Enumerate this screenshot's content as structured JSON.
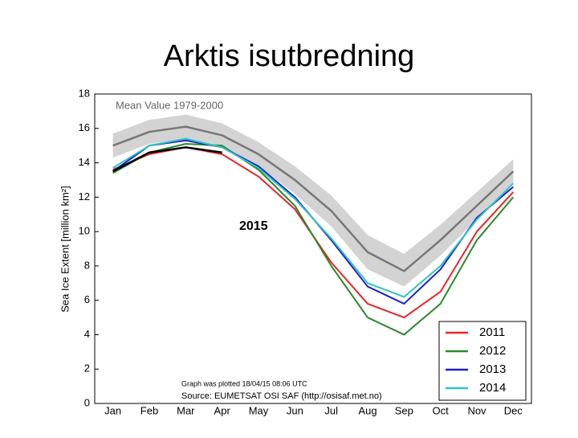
{
  "slide_title": "Arktis isutbredning",
  "chart_data": {
    "type": "line",
    "ylabel": "Sea Ice Extent [million km²]",
    "categories": [
      "Jan",
      "Feb",
      "Mar",
      "Apr",
      "May",
      "Jun",
      "Jul",
      "Aug",
      "Sep",
      "Oct",
      "Nov",
      "Dec"
    ],
    "ylim": [
      0,
      18
    ],
    "yticks": [
      0,
      2,
      4,
      6,
      8,
      10,
      12,
      14,
      16,
      18
    ],
    "mean": {
      "label": "Mean Value 1979-2000",
      "color": "#777777",
      "values": [
        15.0,
        15.8,
        16.1,
        15.6,
        14.5,
        13.0,
        11.2,
        8.8,
        7.7,
        9.5,
        11.5,
        13.5
      ]
    },
    "band": {
      "color": "#d3d3d3",
      "upper": [
        15.7,
        16.5,
        16.8,
        16.3,
        15.2,
        13.8,
        12.1,
        9.8,
        8.7,
        10.4,
        12.3,
        14.2
      ],
      "lower": [
        14.3,
        15.1,
        15.4,
        14.9,
        13.8,
        12.2,
        10.3,
        7.8,
        6.8,
        8.6,
        10.7,
        12.8
      ]
    },
    "series": [
      {
        "name": "2011",
        "color": "#e8242c",
        "values": [
          13.6,
          14.5,
          14.9,
          14.5,
          13.2,
          11.3,
          8.2,
          5.8,
          5.0,
          6.5,
          10.0,
          12.3
        ]
      },
      {
        "name": "2012",
        "color": "#2a8a2a",
        "values": [
          13.4,
          14.6,
          15.1,
          15.0,
          13.6,
          11.5,
          8.0,
          5.0,
          4.0,
          5.8,
          9.5,
          12.0
        ]
      },
      {
        "name": "2013",
        "color": "#1f1fd0",
        "values": [
          13.5,
          15.0,
          15.3,
          14.9,
          13.8,
          12.0,
          9.5,
          6.8,
          5.8,
          7.8,
          10.8,
          12.6
        ]
      },
      {
        "name": "2014",
        "color": "#2ec4c4",
        "values": [
          13.7,
          15.0,
          15.4,
          14.9,
          13.7,
          11.9,
          9.6,
          7.0,
          6.2,
          8.0,
          10.7,
          12.8
        ]
      }
    ],
    "current": {
      "label": "2015",
      "color": "#000000",
      "values": [
        13.5,
        14.6,
        14.9,
        14.6,
        null,
        null,
        null,
        null,
        null,
        null,
        null,
        null
      ]
    },
    "legend": "lower right",
    "notes": [
      "Graph was plotted 18/04/15 08:06 UTC",
      "Source: EUMETSAT OSI SAF (http://osisaf.met.no)"
    ]
  }
}
